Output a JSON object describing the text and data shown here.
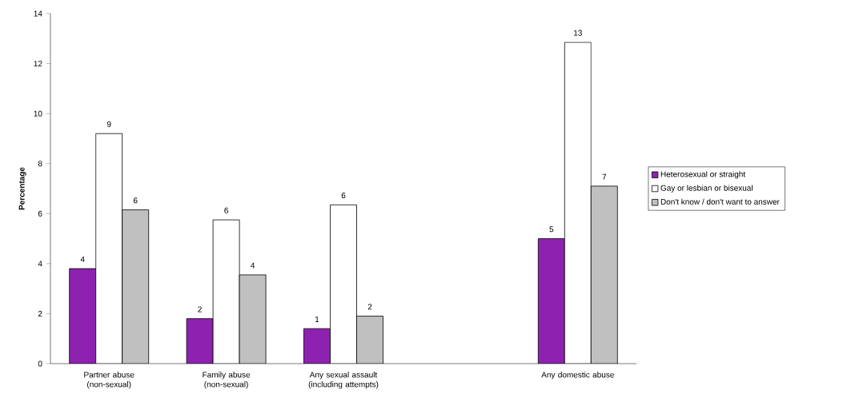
{
  "chart_data": {
    "type": "bar",
    "ylabel": "Percentage",
    "categories": [
      "Partner abuse (non-sexual)",
      "Family abuse (non-sexual)",
      "Any sexual assault (including attempts)",
      null,
      "Any domestic abuse"
    ],
    "series": [
      {
        "name": "Heterosexual or straight",
        "color": "#8e22b0",
        "values": [
          3.8,
          1.8,
          1.4,
          null,
          5.0
        ],
        "value_labels": [
          "4",
          "2",
          "1",
          null,
          "5"
        ]
      },
      {
        "name": "Gay or lesbian or bisexual",
        "color": "#ffffff",
        "values": [
          9.2,
          5.75,
          6.35,
          null,
          12.85
        ],
        "value_labels": [
          "9",
          "6",
          "6",
          null,
          "13"
        ]
      },
      {
        "name": "Don't know / don't want to answer",
        "color": "#c0c0c0",
        "values": [
          6.15,
          3.55,
          1.9,
          null,
          7.1
        ],
        "value_labels": [
          "6",
          "4",
          "2",
          null,
          "7"
        ]
      }
    ],
    "ylim": [
      0,
      14
    ],
    "yticks": [
      0,
      2,
      4,
      6,
      8,
      10,
      12,
      14
    ],
    "legend": "right"
  }
}
